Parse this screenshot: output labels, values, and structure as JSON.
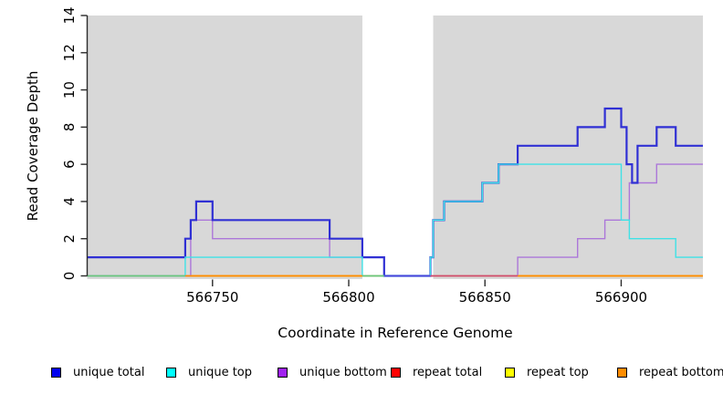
{
  "chart_data": {
    "type": "line",
    "subtype": "step-coverage-plot",
    "title": "",
    "xlabel": "Coordinate in Reference Genome",
    "ylabel": "Read Coverage Depth",
    "xlim": [
      566704,
      566930
    ],
    "ylim": [
      0,
      14
    ],
    "x_ticks": [
      "566750",
      "566800",
      "566850",
      "566900"
    ],
    "x_tick_values": [
      566750,
      566800,
      566850,
      566900
    ],
    "y_ticks": [
      "0",
      "2",
      "4",
      "6",
      "8",
      "10",
      "12",
      "14"
    ],
    "y_tick_values": [
      0,
      2,
      4,
      6,
      8,
      10,
      12,
      14
    ],
    "grid": false,
    "plot_background": "#d8d8d8",
    "gap_region": {
      "start": 566805,
      "end": 566831,
      "color": "#ffffff"
    },
    "series": [
      {
        "id": "unique_total",
        "name": "unique total",
        "color": "#3030D4",
        "width": 2.2,
        "steps": [
          [
            566704,
            1
          ],
          [
            566740,
            2
          ],
          [
            566742,
            3
          ],
          [
            566744,
            4
          ],
          [
            566750,
            3
          ],
          [
            566793,
            2
          ],
          [
            566805,
            1
          ],
          [
            566813,
            0
          ],
          [
            566830,
            1
          ],
          [
            566831,
            3
          ],
          [
            566835,
            4
          ],
          [
            566849,
            5
          ],
          [
            566855,
            6
          ],
          [
            566862,
            7
          ],
          [
            566884,
            8
          ],
          [
            566894,
            9
          ],
          [
            566900,
            8
          ],
          [
            566902,
            6
          ],
          [
            566904,
            5
          ],
          [
            566906,
            7
          ],
          [
            566913,
            8
          ],
          [
            566920,
            7
          ]
        ]
      },
      {
        "id": "unique_top",
        "name": "unique top",
        "color": "#3FE2E6",
        "width": 1.4,
        "steps": [
          [
            566704,
            0
          ],
          [
            566740,
            1
          ],
          [
            566805,
            0
          ],
          [
            566830,
            1
          ],
          [
            566831,
            3
          ],
          [
            566835,
            4
          ],
          [
            566849,
            5
          ],
          [
            566855,
            6
          ],
          [
            566900,
            3
          ],
          [
            566903,
            2
          ],
          [
            566920,
            1
          ]
        ]
      },
      {
        "id": "unique_bottom",
        "name": "unique bottom",
        "color": "#AC77D9",
        "width": 1.4,
        "steps": [
          [
            566704,
            0
          ],
          [
            566742,
            3
          ],
          [
            566750,
            2
          ],
          [
            566793,
            1
          ],
          [
            566813,
            0
          ],
          [
            566862,
            1
          ],
          [
            566884,
            2
          ],
          [
            566894,
            3
          ],
          [
            566903,
            5
          ],
          [
            566913,
            6
          ]
        ]
      },
      {
        "id": "repeat_total",
        "name": "repeat total",
        "color": "#FF0000",
        "width": 1.4,
        "steps": [
          [
            566704,
            0
          ]
        ]
      },
      {
        "id": "repeat_top",
        "name": "repeat top",
        "color": "#FFFF00",
        "width": 1.4,
        "steps": [
          [
            566704,
            0
          ]
        ]
      },
      {
        "id": "repeat_bottom",
        "name": "repeat bottom",
        "color": "#FF8C00",
        "width": 1.4,
        "steps": [
          [
            566704,
            0
          ]
        ]
      }
    ],
    "baseline_segments": [
      {
        "color": "#69C77B",
        "from": 566704,
        "to": 566740
      },
      {
        "color": "#FF8C00",
        "from": 566740,
        "to": 566805
      },
      {
        "color": "#69C77B",
        "from": 566805,
        "to": 566813
      },
      {
        "color": "#4E43DC",
        "from": 566813,
        "to": 566830
      },
      {
        "color": "#D14B6E",
        "from": 566830,
        "to": 566862
      },
      {
        "color": "#FF8C00",
        "from": 566862,
        "to": 566930
      }
    ],
    "legend": [
      {
        "label": "unique total",
        "color": "#0000EE"
      },
      {
        "label": "unique top",
        "color": "#00FFFF"
      },
      {
        "label": "unique bottom",
        "color": "#A020F0"
      },
      {
        "label": "repeat total",
        "color": "#FF0000"
      },
      {
        "label": "repeat top",
        "color": "#FFFF00"
      },
      {
        "label": "repeat bottom",
        "color": "#FF8C00"
      }
    ],
    "legend_position": "bottom"
  }
}
